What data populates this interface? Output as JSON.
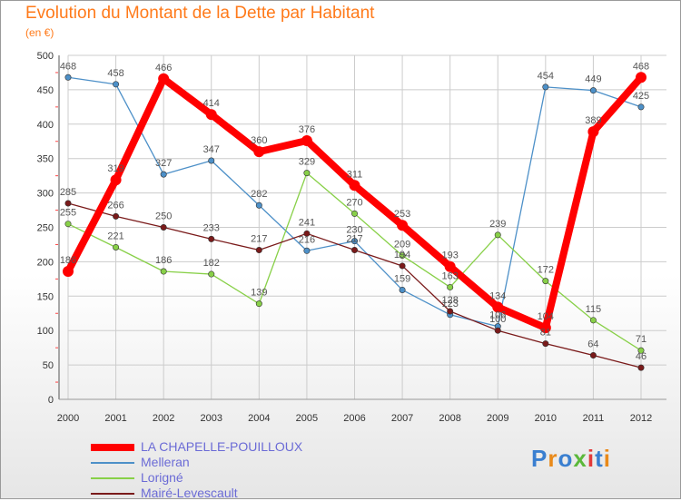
{
  "chart_data": {
    "type": "line",
    "title": "Evolution du Montant de la Dette par Habitant",
    "subtitle": "(en €)",
    "x": [
      "2000",
      "2001",
      "2002",
      "2003",
      "2004",
      "2005",
      "2006",
      "2007",
      "2008",
      "2009",
      "2010",
      "2011",
      "2012"
    ],
    "yticks": [
      0,
      50,
      100,
      150,
      200,
      250,
      300,
      350,
      400,
      450,
      500
    ],
    "ylim": [
      0,
      500
    ],
    "grid": true,
    "legend_position": "bottom-left",
    "series": [
      {
        "name": "Melleran",
        "color": "#4d90c8",
        "values": [
          468,
          458,
          327,
          347,
          282,
          216,
          230,
          159,
          123,
          106,
          454,
          449,
          425
        ]
      },
      {
        "name": "Lorigné",
        "color": "#88d048",
        "values": [
          255,
          221,
          186,
          182,
          139,
          329,
          270,
          209,
          163,
          239,
          172,
          115,
          71
        ]
      },
      {
        "name": "Mairé-Levescault",
        "color": "#7a1a1a",
        "values": [
          285,
          266,
          250,
          233,
          217,
          241,
          217,
          194,
          128,
          100,
          81,
          64,
          46
        ]
      },
      {
        "name": "LA CHAPELLE-POUILLOUX",
        "color": "#ff0000",
        "values": [
          186,
          319,
          466,
          414,
          360,
          376,
          311,
          253,
          193,
          134,
          104,
          389,
          468
        ]
      }
    ]
  },
  "logo": {
    "letters": [
      "P",
      "r",
      "o",
      "x",
      "i",
      "t",
      "i"
    ]
  }
}
